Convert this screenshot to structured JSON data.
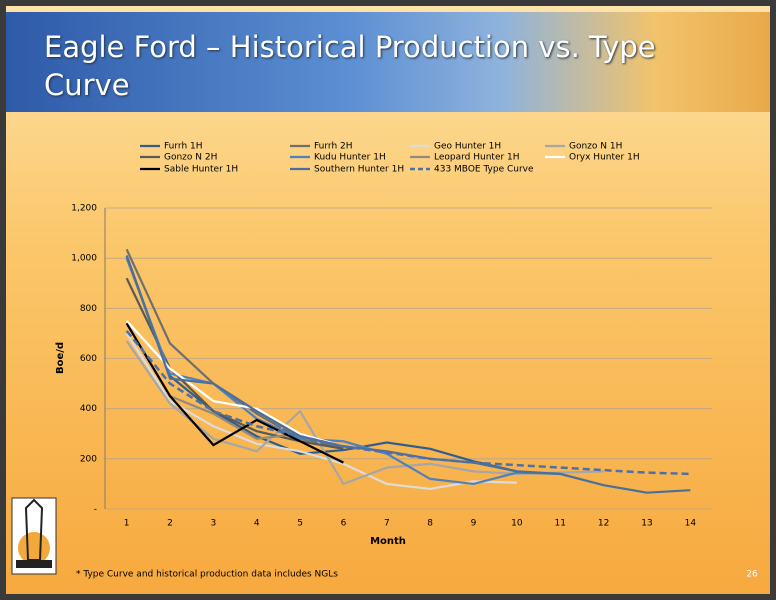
{
  "slide_title": "Eagle Ford – Historical Production vs. Type Curve",
  "footnote": "* Type Curve and historical production data includes NGLs",
  "page_number": "26",
  "chart_data": {
    "type": "line",
    "categories": [
      "1",
      "2",
      "3",
      "4",
      "5",
      "6",
      "7",
      "8",
      "9",
      "10",
      "11",
      "12",
      "13",
      "14"
    ],
    "y_label": "Boe/d",
    "x_label": "Month",
    "ylim": [
      0,
      1200
    ],
    "yticks": [
      {
        "value": 0,
        "label": "-"
      },
      200,
      400,
      600,
      800,
      {
        "value": 1000,
        "label": "1,000"
      },
      {
        "value": 1200,
        "label": "1,200"
      }
    ],
    "grid": true,
    "series": [
      {
        "name": "Furrh 1H",
        "color": "#2f5e8c",
        "values": [
          1010,
          530,
          390,
          290,
          220,
          235,
          265,
          240,
          190,
          150,
          null,
          null,
          null,
          null
        ]
      },
      {
        "name": "Furrh 2H",
        "color": "#6f6f6f",
        "values": [
          1035,
          660,
          500,
          380,
          280,
          245,
          null,
          null,
          null,
          null,
          null,
          null,
          null,
          null
        ]
      },
      {
        "name": "Geo Hunter 1H",
        "color": "#dcdcdc",
        "values": [
          700,
          430,
          330,
          260,
          230,
          180,
          100,
          80,
          110,
          105,
          null,
          null,
          null,
          null
        ]
      },
      {
        "name": "Gonzo N 1H",
        "color": "#a6a6a6",
        "values": [
          670,
          420,
          280,
          230,
          390,
          100,
          165,
          180,
          150,
          140,
          145,
          150,
          null,
          null
        ]
      },
      {
        "name": "Gonzo N 2H",
        "color": "#595959",
        "values": [
          920,
          560,
          390,
          310,
          270,
          240,
          null,
          null,
          null,
          null,
          null,
          null,
          null,
          null
        ]
      },
      {
        "name": "Kudu Hunter 1H",
        "color": "#4f81bd",
        "values": [
          1000,
          540,
          500,
          360,
          280,
          270,
          220,
          120,
          100,
          145,
          140,
          null,
          null,
          null
        ]
      },
      {
        "name": "Leopard Hunter 1H",
        "color": "#948a7a",
        "values": [
          740,
          450,
          380,
          280,
          300,
          250,
          null,
          null,
          null,
          null,
          null,
          null,
          null,
          null
        ]
      },
      {
        "name": "Oryx Hunter 1H",
        "color": "#ffffff",
        "values": [
          750,
          560,
          430,
          400,
          300,
          250,
          null,
          null,
          null,
          null,
          null,
          null,
          null,
          null
        ]
      },
      {
        "name": "Sable Hunter 1H",
        "color": "#000000",
        "values": [
          740,
          450,
          255,
          355,
          270,
          185,
          null,
          null,
          null,
          null,
          null,
          null,
          null,
          null
        ]
      },
      {
        "name": "Southern Hunter 1H",
        "color": "#4a6f9a",
        "values": [
          1010,
          520,
          500,
          390,
          290,
          250,
          230,
          200,
          185,
          150,
          140,
          95,
          65,
          75
        ]
      },
      {
        "name": "433 MBOE Type Curve",
        "color": "#4f6fa8",
        "dashed": true,
        "values": [
          710,
          500,
          390,
          330,
          290,
          250,
          225,
          200,
          185,
          175,
          165,
          155,
          145,
          140
        ]
      }
    ]
  }
}
